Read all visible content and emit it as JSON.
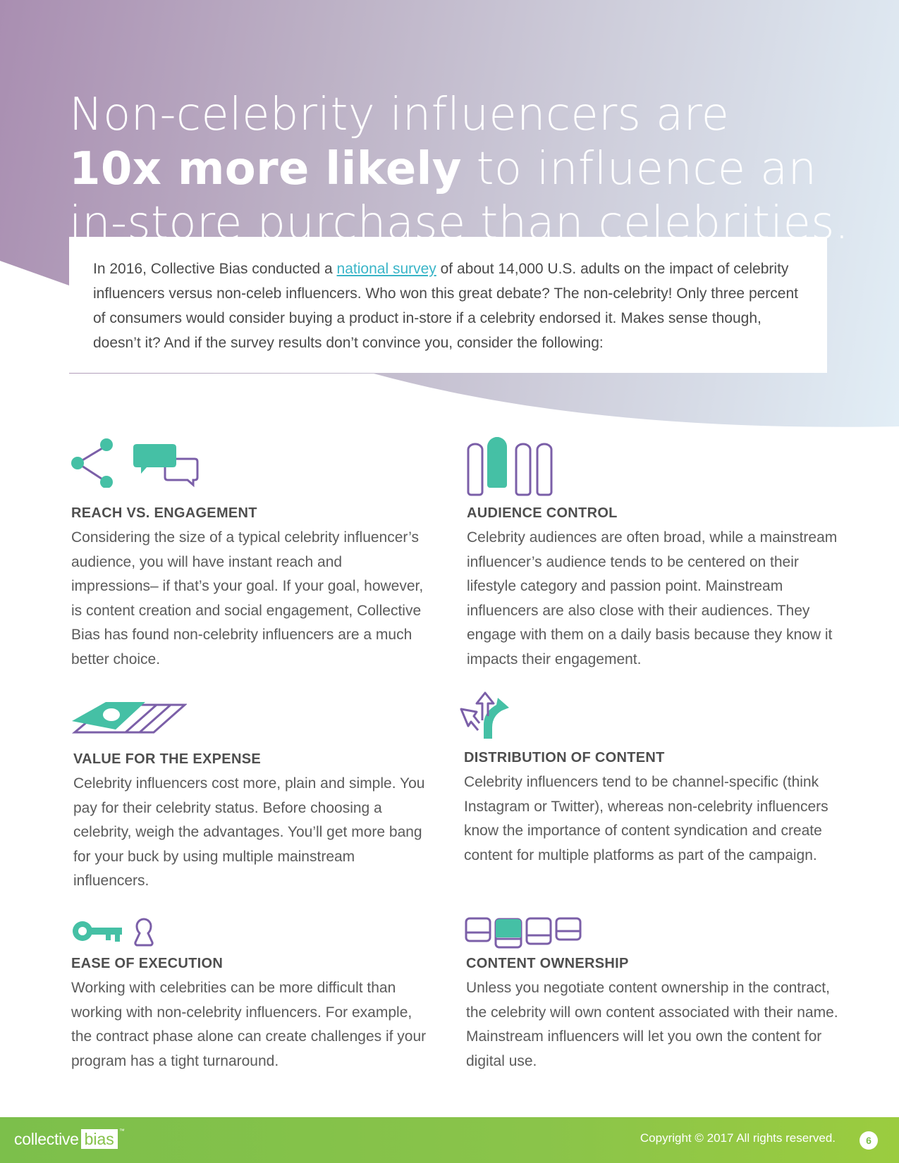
{
  "headline": {
    "line1": "Non-celebrity influencers are",
    "line2_bold": "10x more likely",
    "line2_rest": " to influence an",
    "line3": "in-store purchase than celebrities."
  },
  "intro": {
    "before_link": "In 2016, Collective Bias conducted a ",
    "link_text": "national survey",
    "after_link": " of about 14,000 U.S. adults on the impact of celebrity influencers versus non-celeb influencers. Who won this great debate? The non-celebrity! Only three percent of consumers would consider buying a product in-store if a celebrity endorsed it. Makes sense though, doesn’t it? And if the survey results don’t convince you, consider the following:"
  },
  "sections": {
    "reach": {
      "icon": "share-and-chat-icon",
      "title": "REACH VS. ENGAGEMENT",
      "body": "Considering the size of a typical celebrity influencer’s audience, you will have instant reach and impressions– if that’s your goal. If your goal, however, is content creation and social engagement, Collective Bias has found non-celebrity influencers are a much better choice."
    },
    "audience": {
      "icon": "people-group-icon",
      "title": "AUDIENCE CONTROL",
      "body": "Celebrity audiences are often broad, while a mainstream influencer’s audience  tends  to be centered on their lifestyle category and passion point. Mainstream influencers are also close with their audiences. They engage with them on a daily basis because they know it impacts their engagement."
    },
    "value": {
      "icon": "money-bills-icon",
      "title": "VALUE FOR THE EXPENSE",
      "body": "Celebrity influencers cost more, plain and simple. You pay for their celebrity status. Before choosing a celebrity, weigh the advantages. You’ll get more bang for your buck by using multiple mainstream influencers."
    },
    "distribution": {
      "icon": "diverging-arrows-icon",
      "title": "DISTRIBUTION OF CONTENT",
      "body": "Celebrity influencers tend to be channel-specific (think Instagram or Twitter), whereas non-celebrity influencers know the importance of content syndication and create content for multiple platforms as part of the campaign."
    },
    "ease": {
      "icon": "key-and-keyhole-icon",
      "title": "EASE OF EXECUTION",
      "body": "Working with celebrities can be more difficult than working with non-celebrity influencers. For example, the contract phase alone can create challenges if your program has a tight turnaround."
    },
    "ownership": {
      "icon": "content-boxes-icon",
      "title": "CONTENT OWNERSHIP",
      "body": "Unless you negotiate content ownership in the contract, the celebrity will own content associated with their name. Mainstream influencers will let you own the content for digital use."
    }
  },
  "footer": {
    "logo_part1": "collective",
    "logo_part2": "bias",
    "logo_tm": "™",
    "copyright": "Copyright © 2017 All rights reserved.",
    "page_number": "6"
  },
  "colors": {
    "teal": "#45c0a5",
    "purple": "#7b5fa8",
    "green": "#86c24a",
    "link": "#3ab5c8"
  }
}
